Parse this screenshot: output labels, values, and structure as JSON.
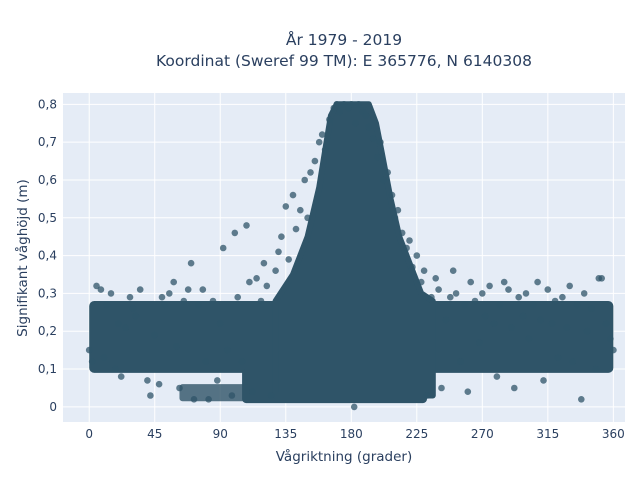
{
  "chart_data": {
    "type": "scatter",
    "title": "År 1979 - 2019",
    "subtitle": "Koordinat (Sweref 99 TM): E 365776, N 6140308",
    "xlabel": "Vågriktning (grader)",
    "ylabel": "Signifikant våghöjd (m)",
    "xlim": [
      -18,
      368
    ],
    "ylim": [
      -0.04,
      0.83
    ],
    "x_ticks": [
      0,
      45,
      90,
      135,
      180,
      225,
      270,
      315,
      360
    ],
    "x_tick_labels": [
      "0",
      "45",
      "90",
      "135",
      "180",
      "225",
      "270",
      "315",
      "360"
    ],
    "y_ticks": [
      0,
      0.1,
      0.2,
      0.3,
      0.4,
      0.5,
      0.6,
      0.7,
      0.8
    ],
    "y_tick_labels": [
      "0",
      "0,1",
      "0,2",
      "0,3",
      "0,4",
      "0,5",
      "0,6",
      "0,7",
      "0,8"
    ],
    "grid": true,
    "legend": "none",
    "marker_color": "#2f5468",
    "plot_background": "#e5ecf6",
    "series": [
      {
        "points": [
          [
            0,
            0.15
          ],
          [
            2,
            0.12
          ],
          [
            5,
            0.32
          ],
          [
            8,
            0.31
          ],
          [
            10,
            0.13
          ],
          [
            12,
            0.27
          ],
          [
            15,
            0.3
          ],
          [
            18,
            0.1
          ],
          [
            20,
            0.22
          ],
          [
            22,
            0.08
          ],
          [
            25,
            0.21
          ],
          [
            28,
            0.29
          ],
          [
            30,
            0.26
          ],
          [
            32,
            0.24
          ],
          [
            35,
            0.31
          ],
          [
            40,
            0.07
          ],
          [
            42,
            0.03
          ],
          [
            45,
            0.19
          ],
          [
            48,
            0.06
          ],
          [
            50,
            0.29
          ],
          [
            52,
            0.27
          ],
          [
            55,
            0.3
          ],
          [
            58,
            0.33
          ],
          [
            60,
            0.16
          ],
          [
            62,
            0.05
          ],
          [
            65,
            0.28
          ],
          [
            68,
            0.31
          ],
          [
            70,
            0.38
          ],
          [
            72,
            0.02
          ],
          [
            75,
            0.27
          ],
          [
            78,
            0.31
          ],
          [
            80,
            0.12
          ],
          [
            82,
            0.02
          ],
          [
            85,
            0.28
          ],
          [
            88,
            0.07
          ],
          [
            90,
            0.22
          ],
          [
            92,
            0.42
          ],
          [
            95,
            0.15
          ],
          [
            98,
            0.03
          ],
          [
            100,
            0.46
          ],
          [
            102,
            0.29
          ],
          [
            105,
            0.12
          ],
          [
            108,
            0.48
          ],
          [
            110,
            0.33
          ],
          [
            112,
            0.04
          ],
          [
            115,
            0.34
          ],
          [
            118,
            0.28
          ],
          [
            120,
            0.38
          ],
          [
            122,
            0.32
          ],
          [
            125,
            0.03
          ],
          [
            128,
            0.36
          ],
          [
            130,
            0.41
          ],
          [
            132,
            0.45
          ],
          [
            135,
            0.53
          ],
          [
            137,
            0.39
          ],
          [
            140,
            0.56
          ],
          [
            142,
            0.47
          ],
          [
            145,
            0.52
          ],
          [
            148,
            0.6
          ],
          [
            150,
            0.5
          ],
          [
            152,
            0.62
          ],
          [
            155,
            0.65
          ],
          [
            158,
            0.7
          ],
          [
            160,
            0.72
          ],
          [
            162,
            0.68
          ],
          [
            165,
            0.76
          ],
          [
            168,
            0.79
          ],
          [
            170,
            0.8
          ],
          [
            172,
            0.78
          ],
          [
            175,
            0.8
          ],
          [
            178,
            0.79
          ],
          [
            180,
            0.8
          ],
          [
            182,
            0.0
          ],
          [
            183,
            0.75
          ],
          [
            185,
            0.8
          ],
          [
            188,
            0.78
          ],
          [
            190,
            0.77
          ],
          [
            192,
            0.74
          ],
          [
            195,
            0.71
          ],
          [
            198,
            0.66
          ],
          [
            200,
            0.7
          ],
          [
            202,
            0.6
          ],
          [
            205,
            0.62
          ],
          [
            208,
            0.56
          ],
          [
            210,
            0.5
          ],
          [
            212,
            0.52
          ],
          [
            215,
            0.46
          ],
          [
            218,
            0.42
          ],
          [
            220,
            0.44
          ],
          [
            222,
            0.37
          ],
          [
            225,
            0.4
          ],
          [
            228,
            0.33
          ],
          [
            230,
            0.36
          ],
          [
            232,
            0.03
          ],
          [
            235,
            0.29
          ],
          [
            238,
            0.34
          ],
          [
            240,
            0.31
          ],
          [
            242,
            0.05
          ],
          [
            245,
            0.23
          ],
          [
            248,
            0.29
          ],
          [
            250,
            0.36
          ],
          [
            252,
            0.3
          ],
          [
            255,
            0.12
          ],
          [
            258,
            0.27
          ],
          [
            260,
            0.04
          ],
          [
            262,
            0.33
          ],
          [
            265,
            0.28
          ],
          [
            268,
            0.17
          ],
          [
            270,
            0.3
          ],
          [
            272,
            0.24
          ],
          [
            275,
            0.32
          ],
          [
            278,
            0.22
          ],
          [
            280,
            0.08
          ],
          [
            282,
            0.27
          ],
          [
            285,
            0.33
          ],
          [
            288,
            0.31
          ],
          [
            290,
            0.21
          ],
          [
            292,
            0.05
          ],
          [
            295,
            0.29
          ],
          [
            298,
            0.24
          ],
          [
            300,
            0.3
          ],
          [
            302,
            0.18
          ],
          [
            305,
            0.27
          ],
          [
            308,
            0.33
          ],
          [
            310,
            0.23
          ],
          [
            312,
            0.07
          ],
          [
            315,
            0.31
          ],
          [
            318,
            0.22
          ],
          [
            320,
            0.28
          ],
          [
            322,
            0.13
          ],
          [
            325,
            0.29
          ],
          [
            328,
            0.21
          ],
          [
            330,
            0.32
          ],
          [
            332,
            0.12
          ],
          [
            335,
            0.27
          ],
          [
            338,
            0.02
          ],
          [
            340,
            0.3
          ],
          [
            342,
            0.2
          ],
          [
            345,
            0.26
          ],
          [
            348,
            0.1
          ],
          [
            350,
            0.34
          ],
          [
            352,
            0.34
          ],
          [
            355,
            0.22
          ],
          [
            358,
            0.18
          ],
          [
            360,
            0.15
          ]
        ]
      }
    ]
  }
}
